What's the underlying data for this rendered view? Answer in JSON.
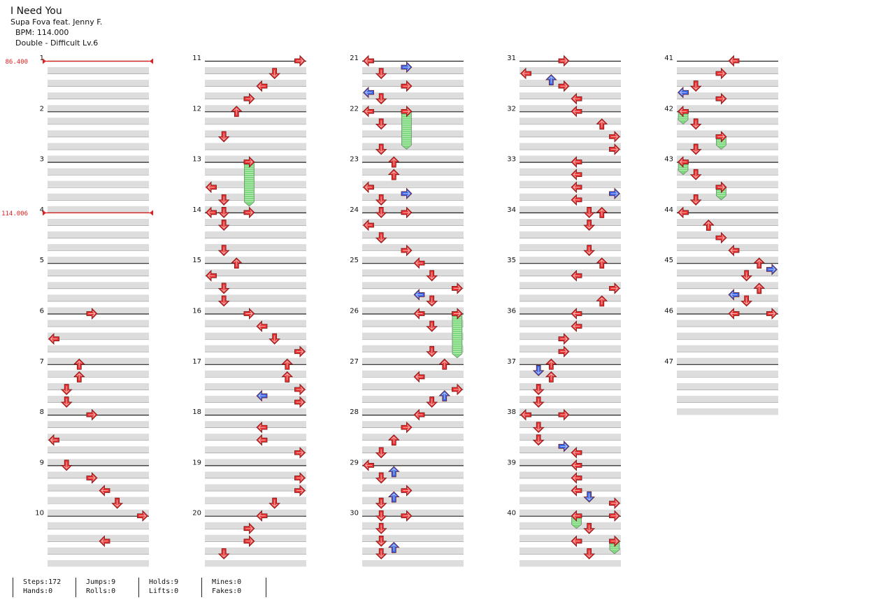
{
  "song": {
    "title": "I Need You",
    "artist": "Supa Fova feat. Jenny F.",
    "bpm_text": "BPM: 114.000",
    "chart_text": "Double - Difficult Lv.6"
  },
  "bpm_changes": [
    {
      "measure": 1,
      "label": "86.400"
    },
    {
      "measure": 4,
      "label": "114.006"
    }
  ],
  "measures": [
    1,
    2,
    3,
    4,
    5,
    6,
    7,
    8,
    9,
    10,
    11,
    12,
    13,
    14,
    15,
    16,
    17,
    18,
    19,
    20,
    21,
    22,
    23,
    24,
    25,
    26,
    27,
    28,
    29,
    30,
    31,
    32,
    33,
    34,
    35,
    36,
    37,
    38,
    39,
    40,
    41,
    42,
    43,
    44,
    45,
    46,
    47
  ],
  "colors": {
    "quarter_note": "#e83030",
    "eighth_note": "#3a64e8",
    "hold": "#7ed87e",
    "bpm_marker": "#e02020",
    "measure_band": "#dddddd",
    "measure_line": "#222222"
  },
  "notes": [
    {
      "m": 6,
      "b": 0,
      "c": 3,
      "d": "right",
      "t": "q"
    },
    {
      "m": 6,
      "b": 2,
      "c": 0,
      "d": "left",
      "t": "q"
    },
    {
      "m": 7,
      "b": 0,
      "c": 2,
      "d": "up",
      "t": "q"
    },
    {
      "m": 7,
      "b": 1,
      "c": 2,
      "d": "up",
      "t": "q"
    },
    {
      "m": 7,
      "b": 2,
      "c": 1,
      "d": "down",
      "t": "q"
    },
    {
      "m": 7,
      "b": 3,
      "c": 1,
      "d": "down",
      "t": "q"
    },
    {
      "m": 8,
      "b": 0,
      "c": 3,
      "d": "right",
      "t": "q"
    },
    {
      "m": 8,
      "b": 2,
      "c": 0,
      "d": "left",
      "t": "q"
    },
    {
      "m": 9,
      "b": 0,
      "c": 1,
      "d": "down",
      "t": "q"
    },
    {
      "m": 9,
      "b": 1,
      "c": 3,
      "d": "right",
      "t": "q"
    },
    {
      "m": 9,
      "b": 2,
      "c": 4,
      "d": "left",
      "t": "q"
    },
    {
      "m": 9,
      "b": 3,
      "c": 5,
      "d": "down",
      "t": "q"
    },
    {
      "m": 10,
      "b": 0,
      "c": 7,
      "d": "right",
      "t": "q"
    },
    {
      "m": 10,
      "b": 2,
      "c": 4,
      "d": "left",
      "t": "q"
    },
    {
      "m": 11,
      "b": 0,
      "c": 7,
      "d": "right",
      "t": "q"
    },
    {
      "m": 11,
      "b": 1,
      "c": 5,
      "d": "down",
      "t": "q"
    },
    {
      "m": 11,
      "b": 2,
      "c": 4,
      "d": "left",
      "t": "q"
    },
    {
      "m": 11,
      "b": 3,
      "c": 3,
      "d": "right",
      "t": "q"
    },
    {
      "m": 12,
      "b": 0,
      "c": 2,
      "d": "up",
      "t": "q"
    },
    {
      "m": 12,
      "b": 2,
      "c": 1,
      "d": "down",
      "t": "q"
    },
    {
      "m": 13,
      "b": 0,
      "c": 3,
      "d": "right",
      "t": "q",
      "hold": 3.5
    },
    {
      "m": 13,
      "b": 2,
      "c": 0,
      "d": "left",
      "t": "q"
    },
    {
      "m": 13,
      "b": 3,
      "c": 1,
      "d": "down",
      "t": "q"
    },
    {
      "m": 14,
      "b": 0,
      "c": 0,
      "d": "left",
      "t": "q"
    },
    {
      "m": 14,
      "b": 0,
      "c": 1,
      "d": "down",
      "t": "q"
    },
    {
      "m": 14,
      "b": 0,
      "c": 3,
      "d": "right",
      "t": "q"
    },
    {
      "m": 14,
      "b": 1,
      "c": 1,
      "d": "down",
      "t": "q"
    },
    {
      "m": 14,
      "b": 3,
      "c": 1,
      "d": "down",
      "t": "q"
    },
    {
      "m": 15,
      "b": 0,
      "c": 2,
      "d": "up",
      "t": "q"
    },
    {
      "m": 15,
      "b": 1,
      "c": 0,
      "d": "left",
      "t": "q"
    },
    {
      "m": 15,
      "b": 2,
      "c": 1,
      "d": "down",
      "t": "q"
    },
    {
      "m": 15,
      "b": 3,
      "c": 1,
      "d": "down",
      "t": "q"
    },
    {
      "m": 16,
      "b": 0,
      "c": 3,
      "d": "right",
      "t": "q"
    },
    {
      "m": 16,
      "b": 1,
      "c": 4,
      "d": "left",
      "t": "q"
    },
    {
      "m": 16,
      "b": 2,
      "c": 5,
      "d": "down",
      "t": "q"
    },
    {
      "m": 16,
      "b": 3,
      "c": 7,
      "d": "right",
      "t": "q"
    },
    {
      "m": 17,
      "b": 0,
      "c": 6,
      "d": "up",
      "t": "q"
    },
    {
      "m": 17,
      "b": 1,
      "c": 6,
      "d": "up",
      "t": "q"
    },
    {
      "m": 17,
      "b": 2,
      "c": 7,
      "d": "right",
      "t": "q"
    },
    {
      "m": 17,
      "b": 2.5,
      "c": 4,
      "d": "left",
      "t": "e"
    },
    {
      "m": 17,
      "b": 3,
      "c": 7,
      "d": "right",
      "t": "q"
    },
    {
      "m": 18,
      "b": 1,
      "c": 4,
      "d": "left",
      "t": "q"
    },
    {
      "m": 18,
      "b": 2,
      "c": 4,
      "d": "left",
      "t": "q"
    },
    {
      "m": 18,
      "b": 3,
      "c": 7,
      "d": "right",
      "t": "q"
    },
    {
      "m": 19,
      "b": 1,
      "c": 7,
      "d": "right",
      "t": "q"
    },
    {
      "m": 19,
      "b": 2,
      "c": 7,
      "d": "right",
      "t": "q"
    },
    {
      "m": 19,
      "b": 3,
      "c": 5,
      "d": "down",
      "t": "q"
    },
    {
      "m": 20,
      "b": 0,
      "c": 4,
      "d": "left",
      "t": "q"
    },
    {
      "m": 20,
      "b": 1,
      "c": 3,
      "d": "right",
      "t": "q"
    },
    {
      "m": 20,
      "b": 2,
      "c": 3,
      "d": "right",
      "t": "q"
    },
    {
      "m": 20,
      "b": 3,
      "c": 1,
      "d": "down",
      "t": "q"
    },
    {
      "m": 21,
      "b": 0,
      "c": 0,
      "d": "left",
      "t": "q"
    },
    {
      "m": 21,
      "b": 0.5,
      "c": 3,
      "d": "right",
      "t": "e"
    },
    {
      "m": 21,
      "b": 1,
      "c": 1,
      "d": "down",
      "t": "q"
    },
    {
      "m": 21,
      "b": 2,
      "c": 3,
      "d": "right",
      "t": "q"
    },
    {
      "m": 21,
      "b": 2.5,
      "c": 0,
      "d": "left",
      "t": "e"
    },
    {
      "m": 21,
      "b": 3,
      "c": 1,
      "d": "down",
      "t": "q"
    },
    {
      "m": 22,
      "b": 0,
      "c": 0,
      "d": "left",
      "t": "q"
    },
    {
      "m": 22,
      "b": 0,
      "c": 3,
      "d": "right",
      "t": "q",
      "hold": 3
    },
    {
      "m": 22,
      "b": 1,
      "c": 1,
      "d": "down",
      "t": "q"
    },
    {
      "m": 22,
      "b": 3,
      "c": 1,
      "d": "down",
      "t": "q"
    },
    {
      "m": 23,
      "b": 0,
      "c": 2,
      "d": "up",
      "t": "q"
    },
    {
      "m": 23,
      "b": 1,
      "c": 2,
      "d": "up",
      "t": "q"
    },
    {
      "m": 23,
      "b": 2,
      "c": 0,
      "d": "left",
      "t": "q"
    },
    {
      "m": 23,
      "b": 2.5,
      "c": 3,
      "d": "right",
      "t": "e"
    },
    {
      "m": 23,
      "b": 3,
      "c": 1,
      "d": "down",
      "t": "q"
    },
    {
      "m": 24,
      "b": 0,
      "c": 1,
      "d": "down",
      "t": "q"
    },
    {
      "m": 24,
      "b": 0,
      "c": 3,
      "d": "right",
      "t": "q"
    },
    {
      "m": 24,
      "b": 1,
      "c": 0,
      "d": "left",
      "t": "q"
    },
    {
      "m": 24,
      "b": 2,
      "c": 1,
      "d": "down",
      "t": "q"
    },
    {
      "m": 24,
      "b": 3,
      "c": 3,
      "d": "right",
      "t": "q"
    },
    {
      "m": 25,
      "b": 0,
      "c": 4,
      "d": "left",
      "t": "q"
    },
    {
      "m": 25,
      "b": 1,
      "c": 5,
      "d": "down",
      "t": "q"
    },
    {
      "m": 25,
      "b": 2,
      "c": 7,
      "d": "right",
      "t": "q"
    },
    {
      "m": 25,
      "b": 2.5,
      "c": 4,
      "d": "left",
      "t": "e"
    },
    {
      "m": 25,
      "b": 3,
      "c": 5,
      "d": "down",
      "t": "q"
    },
    {
      "m": 26,
      "b": 0,
      "c": 4,
      "d": "left",
      "t": "q"
    },
    {
      "m": 26,
      "b": 0,
      "c": 7,
      "d": "right",
      "t": "q",
      "hold": 3.5
    },
    {
      "m": 26,
      "b": 1,
      "c": 5,
      "d": "down",
      "t": "q"
    },
    {
      "m": 26,
      "b": 3,
      "c": 5,
      "d": "down",
      "t": "q"
    },
    {
      "m": 27,
      "b": 0,
      "c": 6,
      "d": "up",
      "t": "q"
    },
    {
      "m": 27,
      "b": 1,
      "c": 4,
      "d": "left",
      "t": "q"
    },
    {
      "m": 27,
      "b": 2,
      "c": 7,
      "d": "right",
      "t": "q"
    },
    {
      "m": 27,
      "b": 2.5,
      "c": 6,
      "d": "up",
      "t": "e"
    },
    {
      "m": 27,
      "b": 3,
      "c": 5,
      "d": "down",
      "t": "q"
    },
    {
      "m": 28,
      "b": 0,
      "c": 4,
      "d": "left",
      "t": "q"
    },
    {
      "m": 28,
      "b": 1,
      "c": 3,
      "d": "right",
      "t": "q"
    },
    {
      "m": 28,
      "b": 2,
      "c": 2,
      "d": "up",
      "t": "q"
    },
    {
      "m": 28,
      "b": 3,
      "c": 1,
      "d": "down",
      "t": "q"
    },
    {
      "m": 29,
      "b": 0,
      "c": 0,
      "d": "left",
      "t": "q"
    },
    {
      "m": 29,
      "b": 0.5,
      "c": 2,
      "d": "up",
      "t": "e"
    },
    {
      "m": 29,
      "b": 1,
      "c": 1,
      "d": "down",
      "t": "q"
    },
    {
      "m": 29,
      "b": 2,
      "c": 3,
      "d": "right",
      "t": "q"
    },
    {
      "m": 29,
      "b": 2.5,
      "c": 2,
      "d": "up",
      "t": "e"
    },
    {
      "m": 29,
      "b": 3,
      "c": 1,
      "d": "down",
      "t": "q"
    },
    {
      "m": 30,
      "b": 0,
      "c": 1,
      "d": "down",
      "t": "q"
    },
    {
      "m": 30,
      "b": 0,
      "c": 3,
      "d": "right",
      "t": "q"
    },
    {
      "m": 30,
      "b": 1,
      "c": 1,
      "d": "down",
      "t": "q"
    },
    {
      "m": 30,
      "b": 2,
      "c": 1,
      "d": "down",
      "t": "q"
    },
    {
      "m": 30,
      "b": 2.5,
      "c": 2,
      "d": "up",
      "t": "e"
    },
    {
      "m": 30,
      "b": 3,
      "c": 1,
      "d": "down",
      "t": "q"
    },
    {
      "m": 31,
      "b": 0,
      "c": 3,
      "d": "right",
      "t": "q"
    },
    {
      "m": 31,
      "b": 1,
      "c": 0,
      "d": "left",
      "t": "q"
    },
    {
      "m": 31,
      "b": 1.5,
      "c": 2,
      "d": "up",
      "t": "e"
    },
    {
      "m": 31,
      "b": 2,
      "c": 3,
      "d": "right",
      "t": "q"
    },
    {
      "m": 31,
      "b": 3,
      "c": 4,
      "d": "left",
      "t": "q"
    },
    {
      "m": 32,
      "b": 0,
      "c": 4,
      "d": "left",
      "t": "q"
    },
    {
      "m": 32,
      "b": 1,
      "c": 6,
      "d": "up",
      "t": "q"
    },
    {
      "m": 32,
      "b": 2,
      "c": 7,
      "d": "right",
      "t": "q"
    },
    {
      "m": 32,
      "b": 3,
      "c": 7,
      "d": "right",
      "t": "q"
    },
    {
      "m": 33,
      "b": 0,
      "c": 4,
      "d": "left",
      "t": "q"
    },
    {
      "m": 33,
      "b": 1,
      "c": 4,
      "d": "left",
      "t": "q"
    },
    {
      "m": 33,
      "b": 2,
      "c": 4,
      "d": "left",
      "t": "q"
    },
    {
      "m": 33,
      "b": 2.5,
      "c": 7,
      "d": "right",
      "t": "e"
    },
    {
      "m": 33,
      "b": 3,
      "c": 4,
      "d": "left",
      "t": "q"
    },
    {
      "m": 34,
      "b": 0,
      "c": 5,
      "d": "down",
      "t": "q"
    },
    {
      "m": 34,
      "b": 0,
      "c": 6,
      "d": "up",
      "t": "q"
    },
    {
      "m": 34,
      "b": 1,
      "c": 5,
      "d": "down",
      "t": "q"
    },
    {
      "m": 34,
      "b": 3,
      "c": 5,
      "d": "down",
      "t": "q"
    },
    {
      "m": 35,
      "b": 0,
      "c": 6,
      "d": "up",
      "t": "q"
    },
    {
      "m": 35,
      "b": 1,
      "c": 4,
      "d": "left",
      "t": "q"
    },
    {
      "m": 35,
      "b": 2,
      "c": 7,
      "d": "right",
      "t": "q"
    },
    {
      "m": 35,
      "b": 3,
      "c": 6,
      "d": "up",
      "t": "q"
    },
    {
      "m": 36,
      "b": 0,
      "c": 4,
      "d": "left",
      "t": "q"
    },
    {
      "m": 36,
      "b": 1,
      "c": 4,
      "d": "left",
      "t": "q"
    },
    {
      "m": 36,
      "b": 2,
      "c": 3,
      "d": "right",
      "t": "q"
    },
    {
      "m": 36,
      "b": 3,
      "c": 3,
      "d": "right",
      "t": "q"
    },
    {
      "m": 37,
      "b": 0,
      "c": 2,
      "d": "up",
      "t": "q"
    },
    {
      "m": 37,
      "b": 0.5,
      "c": 1,
      "d": "down",
      "t": "e"
    },
    {
      "m": 37,
      "b": 1,
      "c": 2,
      "d": "up",
      "t": "q"
    },
    {
      "m": 37,
      "b": 2,
      "c": 1,
      "d": "down",
      "t": "q"
    },
    {
      "m": 37,
      "b": 3,
      "c": 1,
      "d": "down",
      "t": "q"
    },
    {
      "m": 38,
      "b": 0,
      "c": 0,
      "d": "left",
      "t": "q"
    },
    {
      "m": 38,
      "b": 0,
      "c": 3,
      "d": "right",
      "t": "q"
    },
    {
      "m": 38,
      "b": 1,
      "c": 1,
      "d": "down",
      "t": "q"
    },
    {
      "m": 38,
      "b": 2,
      "c": 1,
      "d": "down",
      "t": "q"
    },
    {
      "m": 38,
      "b": 2.5,
      "c": 3,
      "d": "right",
      "t": "e"
    },
    {
      "m": 38,
      "b": 3,
      "c": 4,
      "d": "left",
      "t": "q"
    },
    {
      "m": 39,
      "b": 0,
      "c": 4,
      "d": "left",
      "t": "q"
    },
    {
      "m": 39,
      "b": 1,
      "c": 4,
      "d": "left",
      "t": "q"
    },
    {
      "m": 39,
      "b": 2,
      "c": 4,
      "d": "left",
      "t": "q"
    },
    {
      "m": 39,
      "b": 2.5,
      "c": 5,
      "d": "down",
      "t": "e"
    },
    {
      "m": 39,
      "b": 3,
      "c": 7,
      "d": "right",
      "t": "q"
    },
    {
      "m": 40,
      "b": 0,
      "c": 4,
      "d": "left",
      "t": "q",
      "hold": 1
    },
    {
      "m": 40,
      "b": 0,
      "c": 7,
      "d": "right",
      "t": "q"
    },
    {
      "m": 40,
      "b": 1,
      "c": 5,
      "d": "down",
      "t": "q"
    },
    {
      "m": 40,
      "b": 2,
      "c": 4,
      "d": "left",
      "t": "q"
    },
    {
      "m": 40,
      "b": 2,
      "c": 7,
      "d": "right",
      "t": "q",
      "hold": 1
    },
    {
      "m": 40,
      "b": 3,
      "c": 5,
      "d": "down",
      "t": "q"
    },
    {
      "m": 41,
      "b": 0,
      "c": 4,
      "d": "left",
      "t": "q"
    },
    {
      "m": 41,
      "b": 1,
      "c": 3,
      "d": "right",
      "t": "q"
    },
    {
      "m": 41,
      "b": 2,
      "c": 1,
      "d": "down",
      "t": "q"
    },
    {
      "m": 41,
      "b": 2.5,
      "c": 0,
      "d": "left",
      "t": "e"
    },
    {
      "m": 41,
      "b": 3,
      "c": 3,
      "d": "right",
      "t": "q"
    },
    {
      "m": 42,
      "b": 0,
      "c": 0,
      "d": "left",
      "t": "q",
      "hold": 1
    },
    {
      "m": 42,
      "b": 1,
      "c": 1,
      "d": "down",
      "t": "q"
    },
    {
      "m": 42,
      "b": 2,
      "c": 3,
      "d": "right",
      "t": "q",
      "hold": 1
    },
    {
      "m": 42,
      "b": 3,
      "c": 1,
      "d": "down",
      "t": "q"
    },
    {
      "m": 43,
      "b": 0,
      "c": 0,
      "d": "left",
      "t": "q",
      "hold": 1
    },
    {
      "m": 43,
      "b": 1,
      "c": 1,
      "d": "down",
      "t": "q"
    },
    {
      "m": 43,
      "b": 2,
      "c": 3,
      "d": "right",
      "t": "q",
      "hold": 1
    },
    {
      "m": 43,
      "b": 3,
      "c": 1,
      "d": "down",
      "t": "q"
    },
    {
      "m": 44,
      "b": 0,
      "c": 0,
      "d": "left",
      "t": "q"
    },
    {
      "m": 44,
      "b": 1,
      "c": 2,
      "d": "up",
      "t": "q"
    },
    {
      "m": 44,
      "b": 2,
      "c": 3,
      "d": "right",
      "t": "q"
    },
    {
      "m": 44,
      "b": 3,
      "c": 4,
      "d": "left",
      "t": "q"
    },
    {
      "m": 45,
      "b": 0,
      "c": 6,
      "d": "up",
      "t": "q"
    },
    {
      "m": 45,
      "b": 0.5,
      "c": 7,
      "d": "right",
      "t": "e"
    },
    {
      "m": 45,
      "b": 1,
      "c": 5,
      "d": "down",
      "t": "q"
    },
    {
      "m": 45,
      "b": 2,
      "c": 6,
      "d": "up",
      "t": "q"
    },
    {
      "m": 45,
      "b": 2.5,
      "c": 4,
      "d": "left",
      "t": "e"
    },
    {
      "m": 45,
      "b": 3,
      "c": 5,
      "d": "down",
      "t": "q"
    },
    {
      "m": 46,
      "b": 0,
      "c": 4,
      "d": "left",
      "t": "q"
    },
    {
      "m": 46,
      "b": 0,
      "c": 7,
      "d": "right",
      "t": "q"
    }
  ],
  "stats": [
    {
      "top": "Steps:172",
      "bottom": "Hands:0"
    },
    {
      "top": "Jumps:9",
      "bottom": "Rolls:0"
    },
    {
      "top": "Holds:9",
      "bottom": "Lifts:0"
    },
    {
      "top": "Mines:0",
      "bottom": "Fakes:0"
    }
  ]
}
